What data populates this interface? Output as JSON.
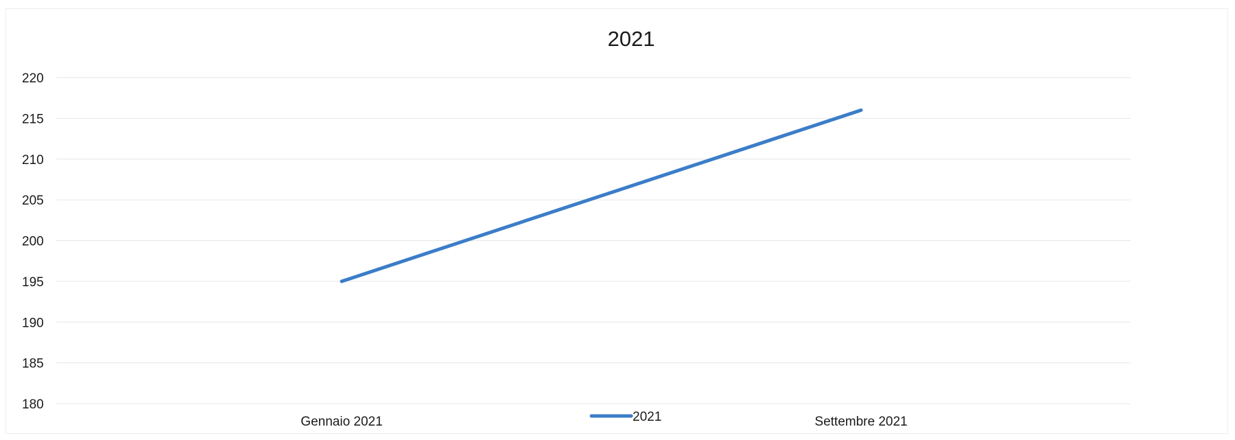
{
  "chart_data": {
    "type": "line",
    "title": "2021",
    "xlabel": "",
    "ylabel": "",
    "categories": [
      "Gennaio 2021",
      "Settembre 2021"
    ],
    "series": [
      {
        "name": "2021",
        "color": "#3b7dc8",
        "values": [
          195,
          216
        ]
      }
    ],
    "ylim": [
      180,
      220
    ],
    "yticks": [
      180,
      185,
      190,
      195,
      200,
      205,
      210,
      215,
      220
    ],
    "grid": true,
    "legend_position": "bottom"
  }
}
